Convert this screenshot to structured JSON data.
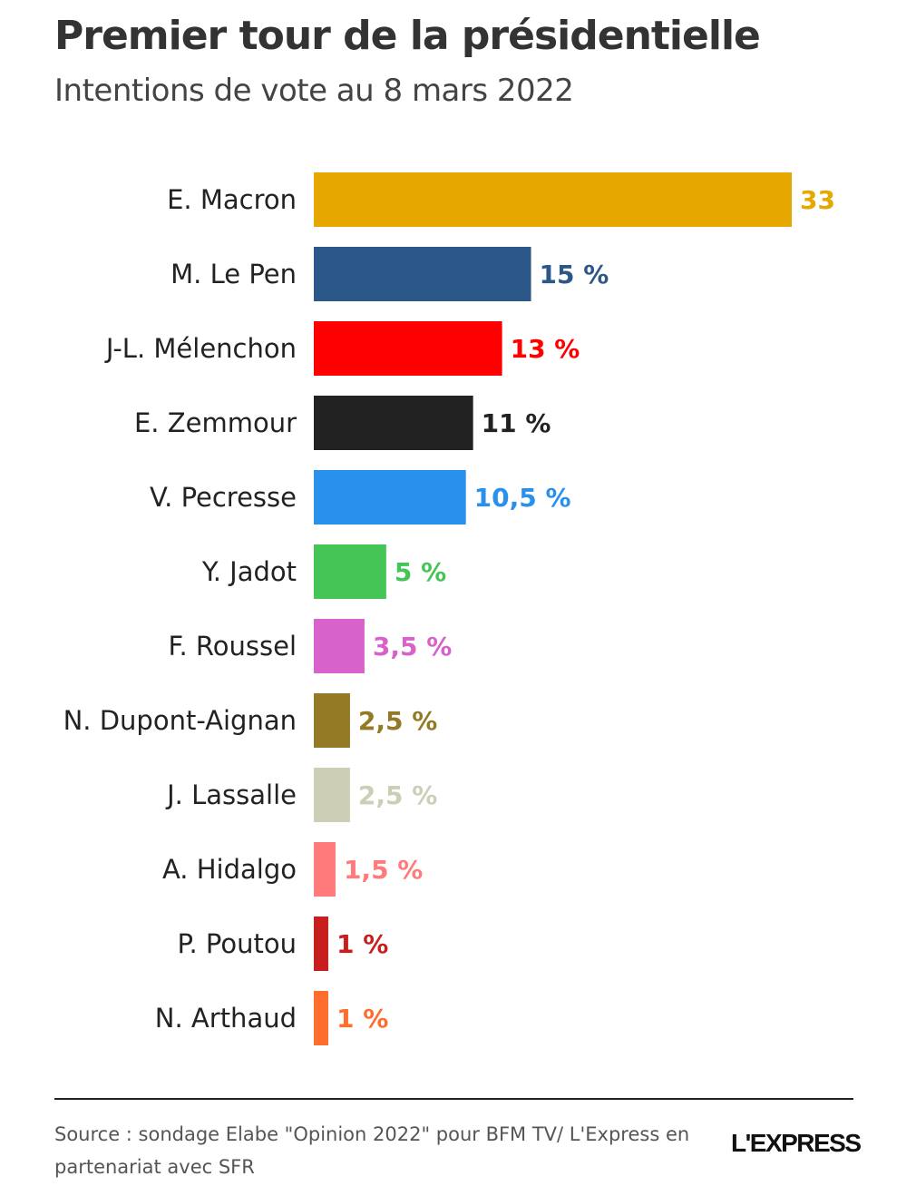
{
  "header": {
    "title": "Premier tour de la présidentielle",
    "subtitle": "Intentions de vote au 8 mars 2022"
  },
  "chart_data": {
    "type": "bar",
    "orientation": "horizontal",
    "title": "Premier tour de la présidentielle",
    "subtitle": "Intentions de vote au 8 mars 2022",
    "categories": [
      "E. Macron",
      "M. Le Pen",
      "J-L. Mélenchon",
      "E. Zemmour",
      "V. Pecresse",
      "Y. Jadot",
      "F. Roussel",
      "N. Dupont-Aignan",
      "J. Lassalle",
      "A. Hidalgo",
      "P. Poutou",
      "N. Arthaud"
    ],
    "values": [
      33,
      15,
      13,
      11,
      10.5,
      5,
      3.5,
      2.5,
      2.5,
      1.5,
      1,
      1
    ],
    "value_labels": [
      "33",
      "15 %",
      "13 %",
      "11 %",
      "10,5 %",
      "5 %",
      "3,5 %",
      "2,5 %",
      "2,5 %",
      "1,5 %",
      "1 %",
      "1 %"
    ],
    "colors": [
      "#e6a800",
      "#2b5889",
      "#ff0000",
      "#222222",
      "#2990ee",
      "#44c555",
      "#d762c9",
      "#957a26",
      "#cccfb5",
      "#ff7a7a",
      "#c71e1e",
      "#ff6d2e"
    ],
    "xlim": [
      0,
      33
    ],
    "grid": false,
    "legend": "none"
  },
  "footer": {
    "source": "Source : sondage Elabe \"Opinion 2022\" pour BFM TV/ L'Express en partenariat avec SFR",
    "logo": "L'EXPRESS"
  }
}
